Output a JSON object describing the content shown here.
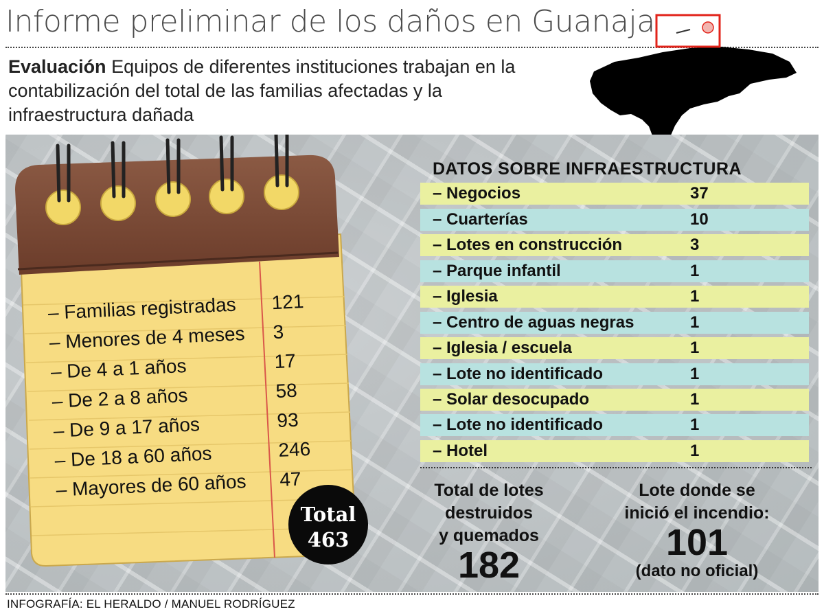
{
  "title": "Informe preliminar de los daños en Guanaja",
  "intro": {
    "lead": "Evaluación",
    "text": " Equipos de diferentes instituciones trabajan en la contabilización del total de las familias afectadas y la infraestructura dañada"
  },
  "families": {
    "rows": [
      {
        "label": "– Familias registradas",
        "value": "121"
      },
      {
        "label": "– Menores de 4 meses",
        "value": "3"
      },
      {
        "label": "– De 4 a 1 años",
        "value": "17"
      },
      {
        "label": "– De 2 a 8 años",
        "value": "58"
      },
      {
        "label": "– De 9 a 17 años",
        "value": "93"
      },
      {
        "label": "– De 18 a 60 años",
        "value": "246"
      },
      {
        "label": "– Mayores de 60 años",
        "value": "47"
      }
    ],
    "total_label": "Total",
    "total_value": "463"
  },
  "infra": {
    "title": "DATOS SOBRE INFRAESTRUCTURA",
    "rows": [
      {
        "label": "– Negocios",
        "value": "37"
      },
      {
        "label": "– Cuarterías",
        "value": "10"
      },
      {
        "label": "– Lotes en construcción",
        "value": "3"
      },
      {
        "label": "– Parque infantil",
        "value": "1"
      },
      {
        "label": "– Iglesia",
        "value": "1"
      },
      {
        "label": "– Centro de aguas negras",
        "value": "1"
      },
      {
        "label": "– Iglesia / escuela",
        "value": "1"
      },
      {
        "label": "– Lote no identificado",
        "value": "1"
      },
      {
        "label": "– Solar desocupado",
        "value": "1"
      },
      {
        "label": "– Lote no identificado",
        "value": "1"
      },
      {
        "label": "– Hotel",
        "value": "1"
      }
    ],
    "band_colors": [
      "#eaf0a0",
      "#b8e2e0"
    ]
  },
  "summary_left": {
    "line1": "Total de lotes",
    "line2": "destruidos",
    "line3": "y quemados",
    "number": "182"
  },
  "summary_right": {
    "line1": "Lote donde se",
    "line2": "inició el incendio:",
    "number": "101",
    "note": "(dato no oficial)"
  },
  "credit": "INFOGRAFÍA: EL HERALDO / MANUEL RODRÍGUEZ",
  "colors": {
    "notepad_cover": "#7a4a36",
    "notepad_paper": "#f7dc82",
    "rings_fill": "#f2d867",
    "margin_line": "#d9574a",
    "map_highlight": "#e2231a"
  }
}
